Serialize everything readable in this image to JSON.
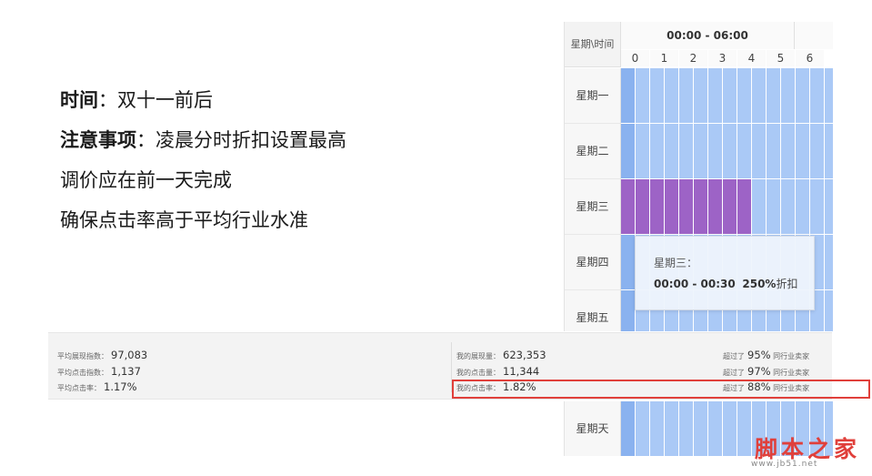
{
  "notes": [
    {
      "bold": "时间",
      "text": "：双十一前后"
    },
    {
      "bold": "注意事项",
      "text": "：凌晨分时折扣设置最高"
    },
    {
      "bold": "",
      "text": "调价应在前一天完成"
    },
    {
      "bold": "",
      "text": "确保点击率高于平均行业水准"
    }
  ],
  "schedule": {
    "corner_label": "星期\\时间",
    "range_label": "00:00 - 06:00",
    "hours": [
      "0",
      "1",
      "2",
      "3",
      "4",
      "5",
      "6"
    ],
    "days": [
      "星期一",
      "星期二",
      "星期三",
      "星期四",
      "星期五"
    ],
    "bottom_day": "星期天",
    "colors": {
      "normal": "#aac9f6",
      "dark": "#8ab2ef",
      "selected": "#9d63c6"
    }
  },
  "tooltip": {
    "title": "星期三：",
    "time_range": "00:00 - 00:30",
    "discount": "250%",
    "discount_suffix": "折扣"
  },
  "stats": {
    "left": [
      {
        "label": "平均展现指数：",
        "value": "97,083"
      },
      {
        "label": "平均点击指数：",
        "value": "1,137"
      },
      {
        "label": "平均点击率：",
        "value": "1.17%"
      }
    ],
    "right": [
      {
        "label": "我的展现量：",
        "value": "623,353",
        "beat_prefix": "超过了",
        "beat_value": "95%",
        "beat_suffix": "同行业卖家"
      },
      {
        "label": "我的点击量：",
        "value": "11,344",
        "beat_prefix": "超过了",
        "beat_value": "97%",
        "beat_suffix": "同行业卖家"
      },
      {
        "label": "我的点击率：",
        "value": "1.82%",
        "beat_prefix": "超过了",
        "beat_value": "88%",
        "beat_suffix": "同行业卖家"
      }
    ]
  },
  "watermark": {
    "text": "脚本之家",
    "url": "www.jb51.net"
  }
}
